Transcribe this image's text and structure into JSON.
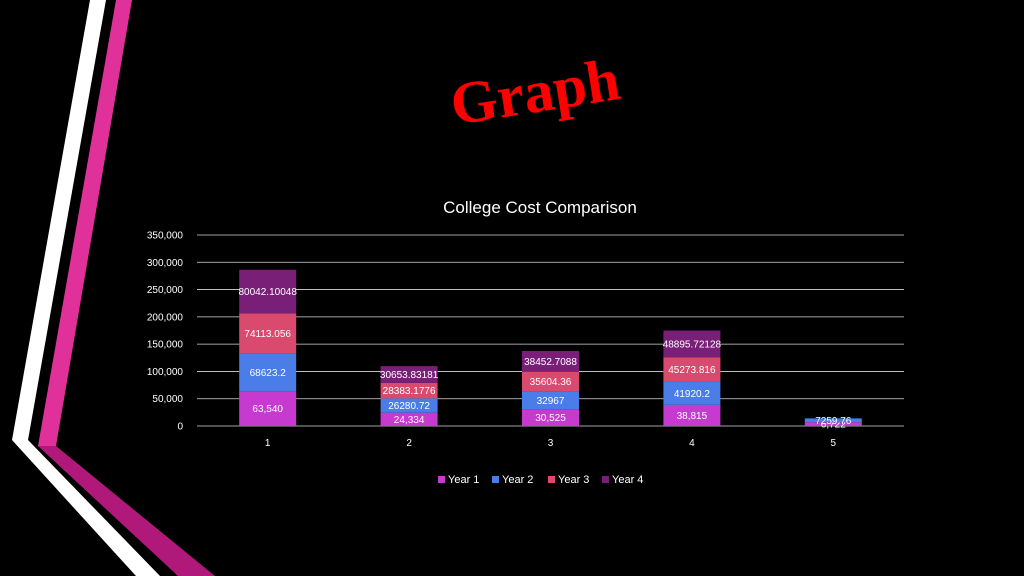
{
  "slide": {
    "title": "Graph"
  },
  "colors": {
    "background": "#000000",
    "title": "#ff0000",
    "accent_pink": "#e0309a",
    "accent_white": "#ffffff",
    "accent_magenta": "#b0187a"
  },
  "chart_data": {
    "type": "bar",
    "stacked": true,
    "title": "College Cost Comparison",
    "categories": [
      "1",
      "2",
      "3",
      "4",
      "5"
    ],
    "ylim": [
      0,
      350000
    ],
    "yticks": [
      "0",
      "50,000",
      "100,000",
      "150,000",
      "200,000",
      "250,000",
      "300,000",
      "350,000"
    ],
    "grid": true,
    "legend_position": "bottom",
    "series": [
      {
        "name": "Year 1",
        "color": "#c63ad0",
        "values": [
          63540,
          24334,
          30525,
          38815,
          6722
        ],
        "labels": [
          "63,540",
          "24,334",
          "30,525",
          "38,815",
          "6,722"
        ]
      },
      {
        "name": "Year 2",
        "color": "#4a7de8",
        "values": [
          68623.2,
          26280.72,
          32967,
          41920.2,
          7259.76
        ],
        "labels": [
          "68623.2",
          "26280.72",
          "32967",
          "41920.2",
          "7259.76"
        ]
      },
      {
        "name": "Year 3",
        "color": "#d94a6e",
        "values": [
          74113.056,
          28383.1776,
          35604.36,
          45273.816,
          0
        ],
        "labels": [
          "74113.056",
          "28383.1776",
          "35604.36",
          "45273.816",
          ""
        ]
      },
      {
        "name": "Year 4",
        "color": "#7a1f78",
        "values": [
          80042.10048,
          30653.83181,
          38452.7088,
          48895.72128,
          0
        ],
        "labels": [
          "80042.10048",
          "30653.83181",
          "38452.7088",
          "48895.72128",
          ""
        ]
      }
    ]
  }
}
